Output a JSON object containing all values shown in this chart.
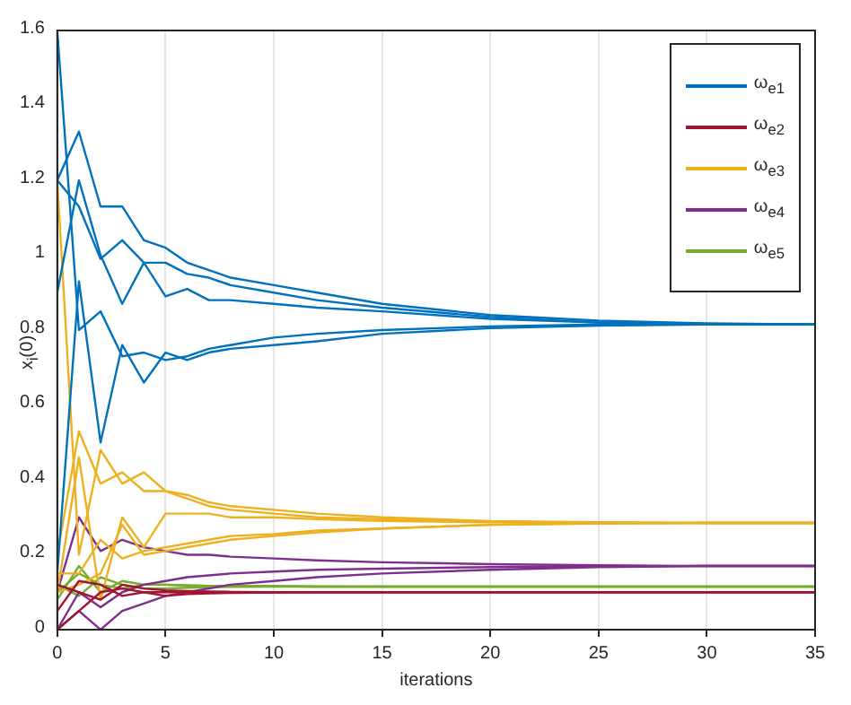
{
  "chart_data": {
    "type": "line",
    "xlabel": "iterations",
    "ylabel": "x$_{i}$(0)",
    "x": [
      0,
      1,
      2,
      3,
      4,
      5,
      6,
      7,
      8,
      10,
      12,
      15,
      20,
      25,
      30,
      35
    ],
    "xlim": [
      0,
      35
    ],
    "xticks": [
      0,
      5,
      10,
      15,
      20,
      25,
      30,
      35
    ],
    "ylim": [
      0,
      1.6
    ],
    "yticks": [
      0,
      0.2,
      0.4,
      0.6,
      0.8,
      1,
      1.2,
      1.4,
      1.6
    ],
    "grid": "x",
    "legend": "top right",
    "marker": "none",
    "line_style": "solid",
    "series": [
      {
        "name": "ω$_{e1}$",
        "color": "#0072bd",
        "values": [
          1.6,
          0.8,
          0.85,
          0.73,
          0.74,
          0.72,
          0.73,
          0.75,
          0.76,
          0.78,
          0.79,
          0.8,
          0.81,
          0.815,
          0.815,
          0.815
        ]
      },
      {
        "color": "#0072bd",
        "values": [
          1.2,
          1.33,
          1.13,
          1.13,
          1.04,
          1.02,
          0.98,
          0.96,
          0.94,
          0.92,
          0.9,
          0.87,
          0.84,
          0.825,
          0.818,
          0.815
        ]
      },
      {
        "color": "#0072bd",
        "values": [
          1.2,
          1.13,
          0.99,
          1.04,
          0.98,
          0.98,
          0.95,
          0.94,
          0.92,
          0.9,
          0.88,
          0.86,
          0.835,
          0.82,
          0.816,
          0.815
        ]
      },
      {
        "color": "#0072bd",
        "values": [
          0.9,
          1.2,
          1.0,
          0.87,
          0.98,
          0.89,
          0.91,
          0.88,
          0.88,
          0.87,
          0.86,
          0.85,
          0.83,
          0.82,
          0.816,
          0.815
        ]
      },
      {
        "color": "#0072bd",
        "values": [
          0.15,
          0.93,
          0.5,
          0.76,
          0.66,
          0.74,
          0.72,
          0.74,
          0.75,
          0.76,
          0.77,
          0.79,
          0.805,
          0.812,
          0.815,
          0.815
        ]
      },
      {
        "name": "ω$_{e2}$",
        "color": "#a2142f",
        "values": [
          0,
          0.05,
          0.1,
          0.11,
          0.1,
          0.1,
          0.1,
          0.1,
          0.1,
          0.1,
          0.1,
          0.1,
          0.1,
          0.1,
          0.1,
          0.1
        ]
      },
      {
        "color": "#a2142f",
        "values": [
          0.05,
          0.13,
          0.12,
          0.09,
          0.1,
          0.09,
          0.095,
          0.097,
          0.098,
          0.099,
          0.1,
          0.1,
          0.1,
          0.1,
          0.1,
          0.1
        ]
      },
      {
        "color": "#a2142f",
        "values": [
          0.12,
          0.1,
          0.08,
          0.12,
          0.11,
          0.105,
          0.103,
          0.102,
          0.101,
          0.1,
          0.1,
          0.1,
          0.1,
          0.1,
          0.1,
          0.1
        ]
      },
      {
        "name": "ω$_{e3}$",
        "color": "#edb120",
        "values": [
          1.2,
          0.2,
          0.48,
          0.39,
          0.42,
          0.37,
          0.36,
          0.34,
          0.33,
          0.32,
          0.31,
          0.3,
          0.29,
          0.287,
          0.285,
          0.285
        ]
      },
      {
        "color": "#edb120",
        "values": [
          0.2,
          0.53,
          0.39,
          0.42,
          0.37,
          0.37,
          0.35,
          0.33,
          0.32,
          0.31,
          0.3,
          0.295,
          0.288,
          0.286,
          0.285,
          0.285
        ]
      },
      {
        "color": "#edb120",
        "values": [
          0.1,
          0.46,
          0.08,
          0.3,
          0.22,
          0.31,
          0.31,
          0.31,
          0.3,
          0.3,
          0.295,
          0.29,
          0.287,
          0.285,
          0.285,
          0.285
        ]
      },
      {
        "color": "#edb120",
        "values": [
          0.15,
          0.15,
          0.24,
          0.19,
          0.21,
          0.22,
          0.23,
          0.24,
          0.25,
          0.255,
          0.265,
          0.27,
          0.28,
          0.284,
          0.285,
          0.285
        ]
      },
      {
        "color": "#edb120",
        "values": [
          0.1,
          0.12,
          0.15,
          0.28,
          0.2,
          0.21,
          0.22,
          0.23,
          0.24,
          0.25,
          0.26,
          0.27,
          0.28,
          0.284,
          0.285,
          0.285
        ]
      },
      {
        "name": "ω$_{e4}$",
        "color": "#7e2f8e",
        "values": [
          0.1,
          0.3,
          0.21,
          0.24,
          0.22,
          0.21,
          0.2,
          0.2,
          0.195,
          0.19,
          0.185,
          0.18,
          0.175,
          0.172,
          0.17,
          0.17
        ]
      },
      {
        "color": "#7e2f8e",
        "values": [
          0,
          0.05,
          0,
          0.05,
          0.07,
          0.09,
          0.1,
          0.11,
          0.12,
          0.13,
          0.14,
          0.15,
          0.16,
          0.167,
          0.17,
          0.17
        ]
      },
      {
        "color": "#7e2f8e",
        "values": [
          0,
          0.1,
          0.06,
          0.1,
          0.12,
          0.13,
          0.14,
          0.145,
          0.15,
          0.155,
          0.16,
          0.163,
          0.167,
          0.169,
          0.17,
          0.17
        ]
      },
      {
        "name": "ω$_{e5}$",
        "color": "#77ac30",
        "values": [
          0.1,
          0.15,
          0.12,
          0.11,
          0.12,
          0.12,
          0.118,
          0.117,
          0.116,
          0.116,
          0.115,
          0.115,
          0.115,
          0.115,
          0.115,
          0.115
        ]
      },
      {
        "color": "#77ac30",
        "values": [
          0.12,
          0.09,
          0.14,
          0.12,
          0.11,
          0.11,
          0.112,
          0.113,
          0.114,
          0.115,
          0.115,
          0.115,
          0.115,
          0.115,
          0.115,
          0.115
        ]
      },
      {
        "color": "#77ac30",
        "values": [
          0.08,
          0.17,
          0.1,
          0.13,
          0.12,
          0.12,
          0.118,
          0.117,
          0.116,
          0.116,
          0.115,
          0.115,
          0.115,
          0.115,
          0.115,
          0.115
        ]
      }
    ]
  }
}
